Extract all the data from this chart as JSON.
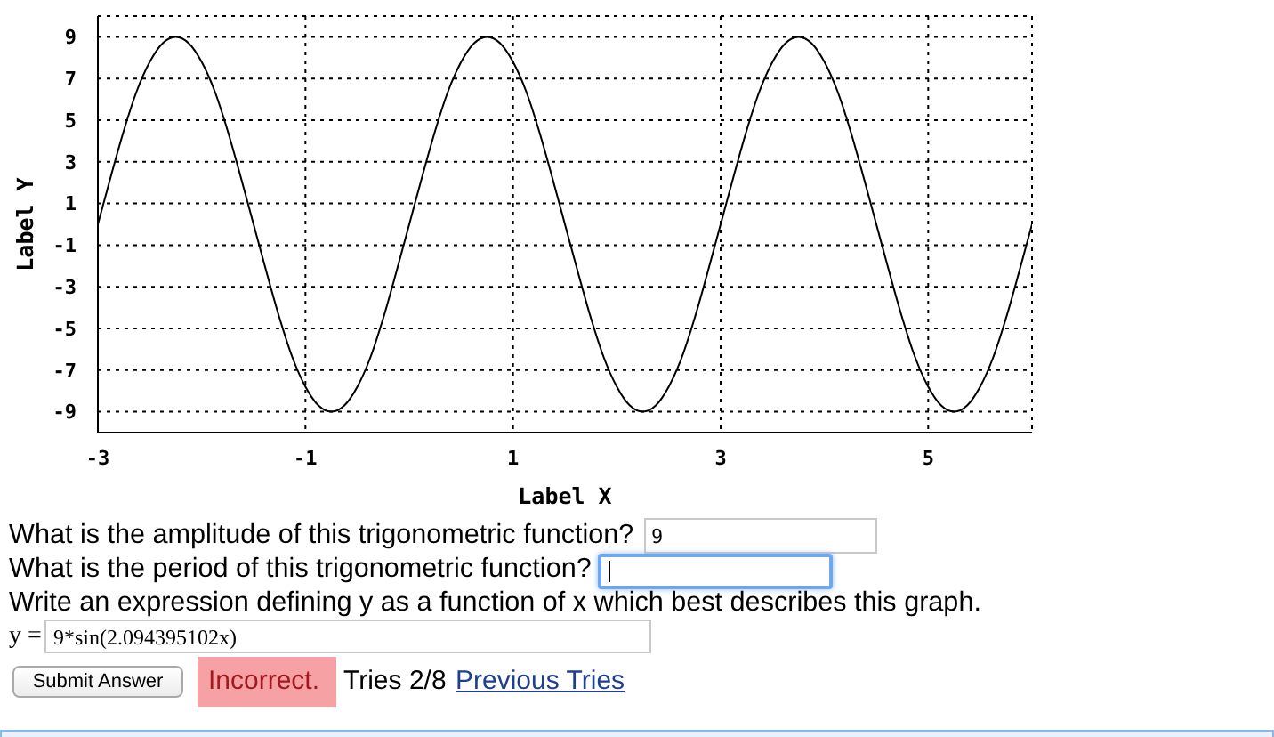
{
  "chart_data": {
    "type": "line",
    "xlabel": "Label X",
    "ylabel": "Label Y",
    "x": [
      -3,
      -2.875,
      -2.75,
      -2.625,
      -2.5,
      -2.375,
      -2.25,
      -2.125,
      -2,
      -1.875,
      -1.75,
      -1.625,
      -1.5,
      -1.375,
      -1.25,
      -1.125,
      -1,
      -0.875,
      -0.75,
      -0.625,
      -0.5,
      -0.375,
      -0.25,
      -0.125,
      0,
      0.125,
      0.25,
      0.375,
      0.5,
      0.625,
      0.75,
      0.875,
      1,
      1.125,
      1.25,
      1.375,
      1.5,
      1.625,
      1.75,
      1.875,
      2,
      2.125,
      2.25,
      2.375,
      2.5,
      2.625,
      2.75,
      2.875,
      3,
      3.125,
      3.25,
      3.375,
      3.5,
      3.625,
      3.75,
      3.875,
      4,
      4.125,
      4.25,
      4.375,
      4.5,
      4.625,
      4.75,
      4.875,
      5,
      5.125,
      5.25,
      5.375,
      5.5,
      5.625,
      5.75,
      5.875,
      6
    ],
    "values": [
      0,
      2.3,
      4.5,
      6.4,
      7.8,
      8.7,
      9,
      8.7,
      7.8,
      6.4,
      4.5,
      2.3,
      0,
      -2.3,
      -4.5,
      -6.4,
      -7.8,
      -8.7,
      -9,
      -8.7,
      -7.8,
      -6.4,
      -4.5,
      -2.3,
      0,
      2.3,
      4.5,
      6.4,
      7.8,
      8.7,
      9,
      8.7,
      7.8,
      6.4,
      4.5,
      2.3,
      0,
      -2.3,
      -4.5,
      -6.4,
      -7.8,
      -8.7,
      -9,
      -8.7,
      -7.8,
      -6.4,
      -4.5,
      -2.3,
      0,
      2.3,
      4.5,
      6.4,
      7.8,
      8.7,
      9,
      8.7,
      7.8,
      6.4,
      4.5,
      2.3,
      0,
      -2.3,
      -4.5,
      -6.4,
      -7.8,
      -8.7,
      -9,
      -8.7,
      -7.8,
      -6.4,
      -4.5,
      -2.3,
      0
    ],
    "color": "#000000",
    "marker": "none",
    "line_style": "solid",
    "xlim": [
      -3,
      6
    ],
    "xticks": [
      -3,
      -1,
      1,
      3,
      5
    ],
    "ylim": [
      -10,
      10
    ],
    "yticks": [
      -9,
      -7,
      -5,
      -3,
      -1,
      1,
      3,
      5,
      7,
      9
    ],
    "grid": true,
    "annotations": [
      "What is the amplitude of this trigonometric function?",
      "9",
      "What is the period of this trigonometric function?",
      "Write an expression defining y as a function of x which best describes this graph.",
      "y =",
      "9*sin(2.094395102x)",
      "Submit Answer",
      "Incorrect.",
      "Tries 2/8",
      "Previous Tries"
    ]
  }
}
